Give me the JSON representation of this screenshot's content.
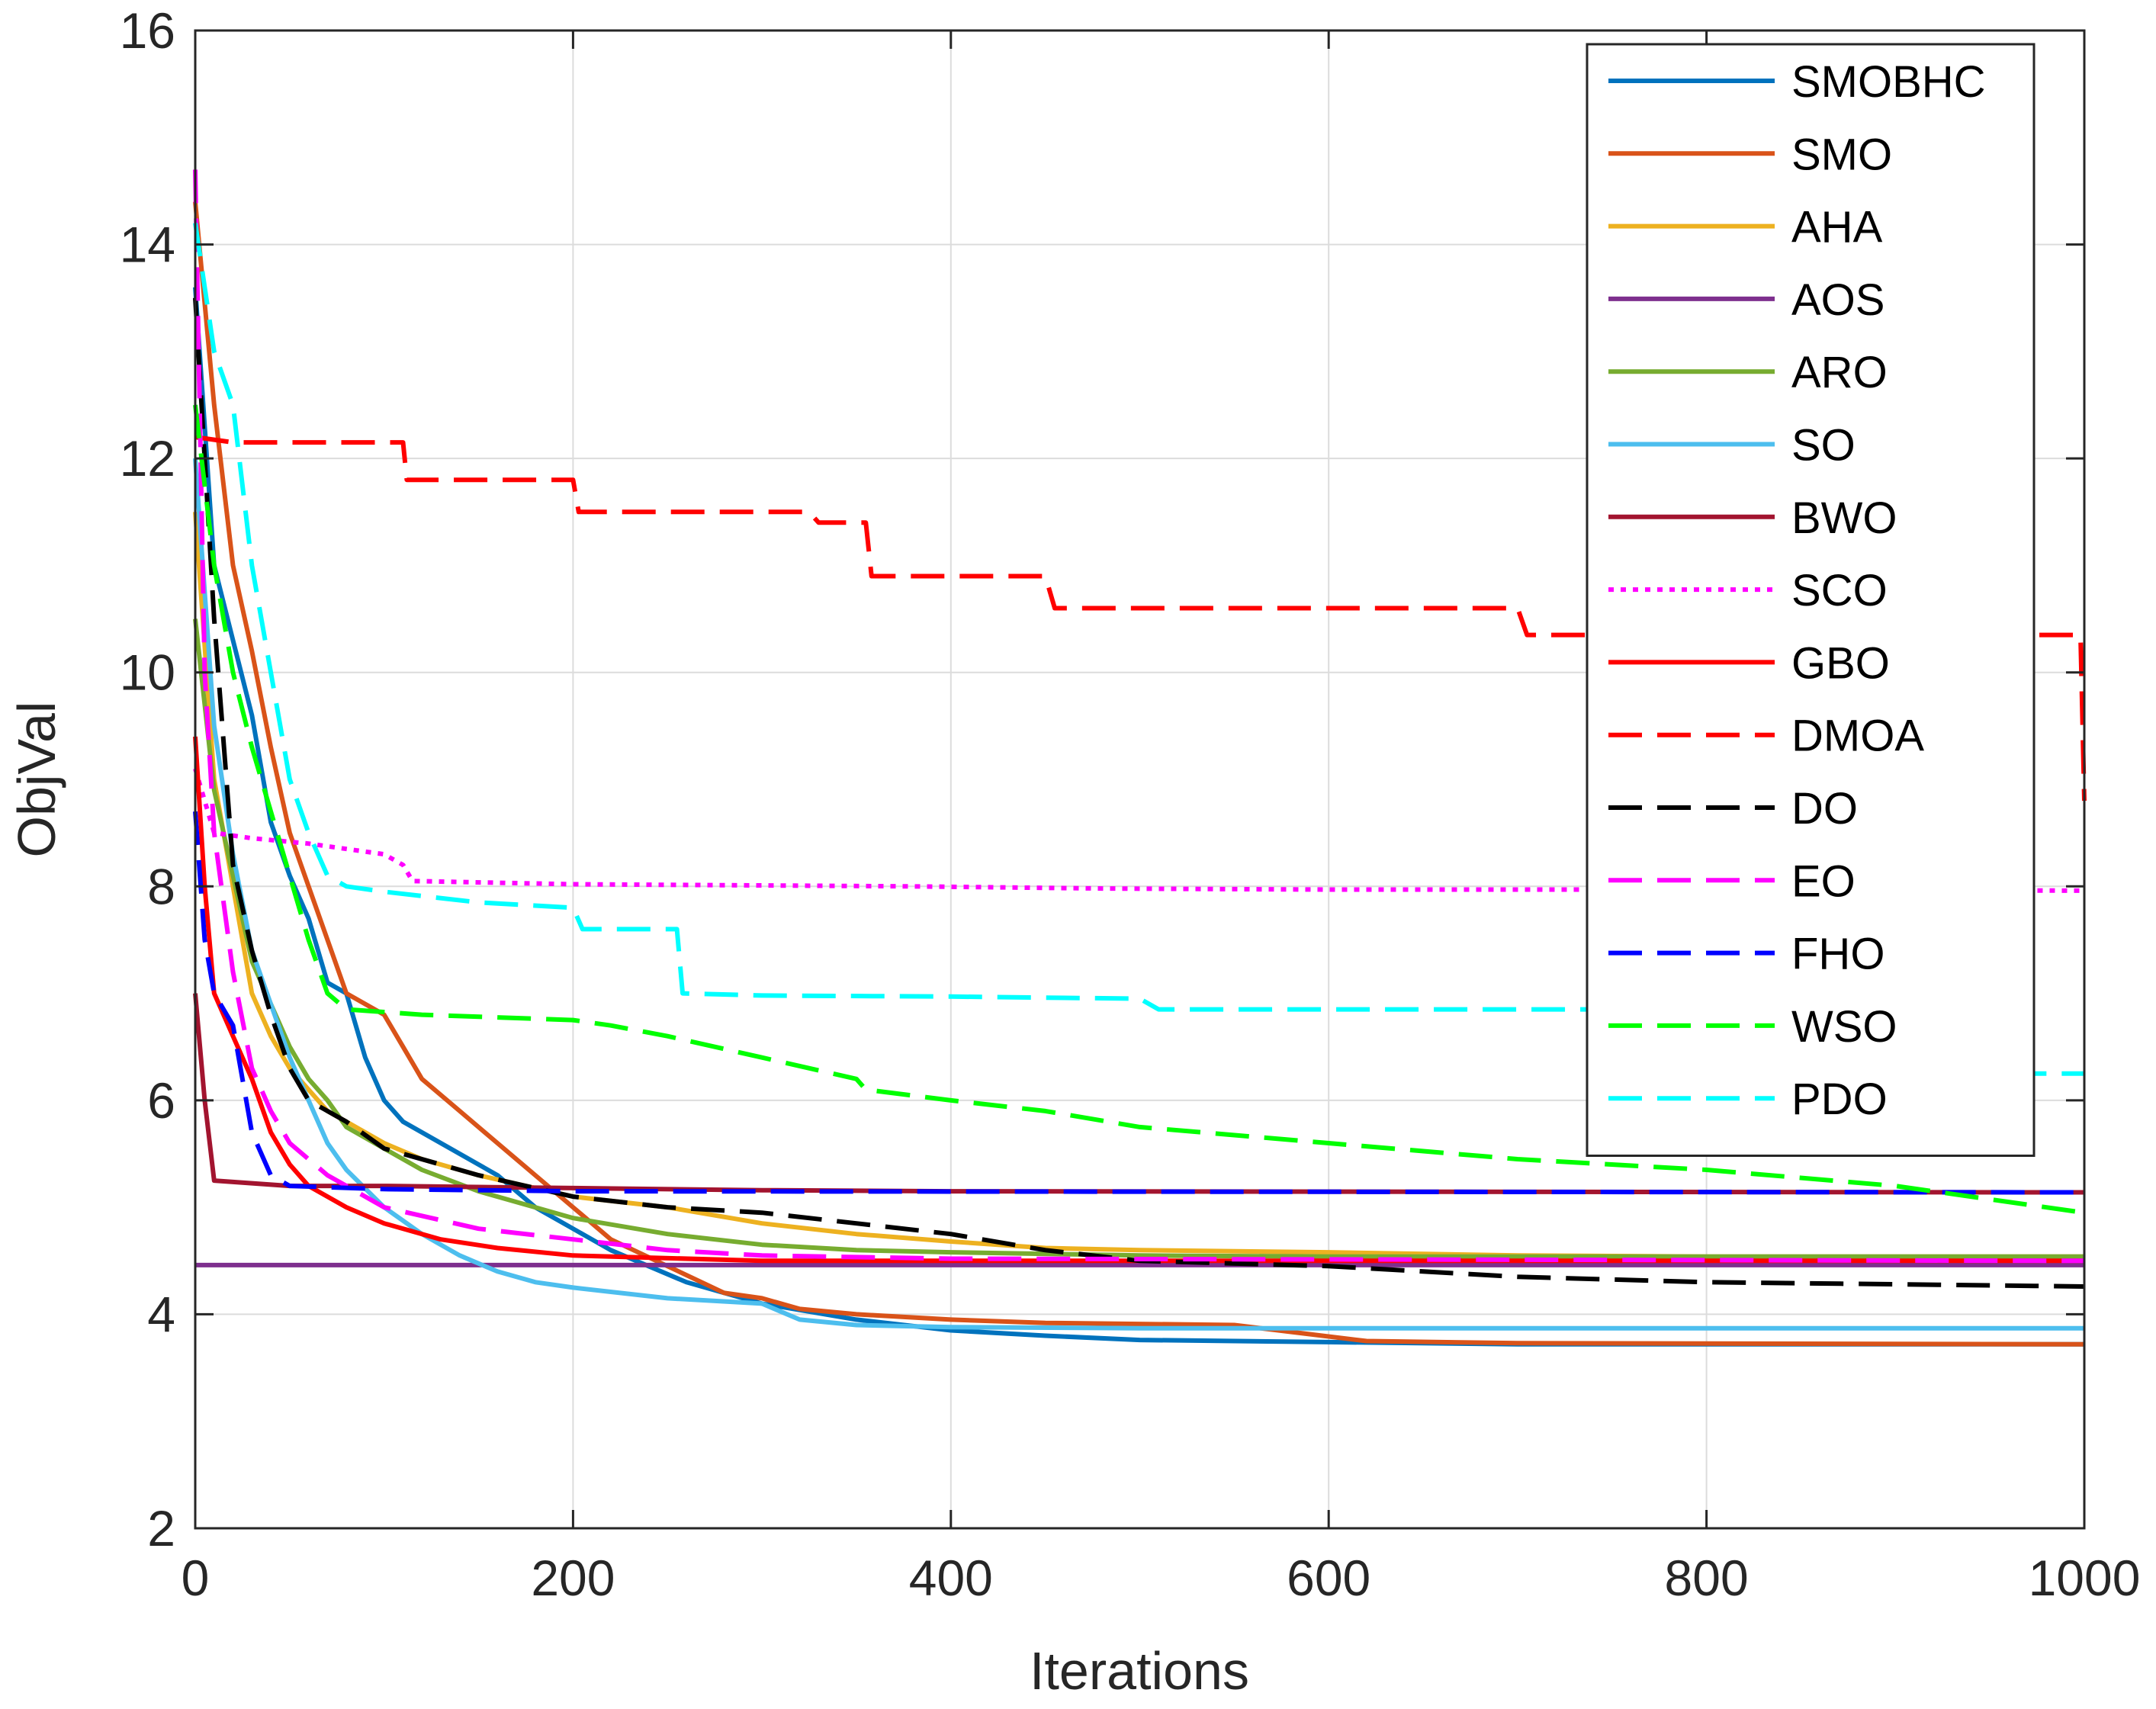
{
  "chart_data": {
    "type": "line",
    "title": "",
    "xlabel": "Iterations",
    "ylabel": "ObjVal",
    "xlim": [
      0,
      1000
    ],
    "ylim": [
      2,
      16
    ],
    "xticks": [
      "0",
      "200",
      "400",
      "600",
      "800",
      "1000"
    ],
    "yticks": [
      "2",
      "4",
      "6",
      "8",
      "10",
      "12",
      "14",
      "16"
    ],
    "grid": true,
    "legend_position": "top-right",
    "series": [
      {
        "name": "SMOBHC",
        "color": "#0072BD",
        "dash": "solid",
        "points": [
          [
            0,
            13.6
          ],
          [
            10,
            11.0
          ],
          [
            20,
            10.3
          ],
          [
            30,
            9.6
          ],
          [
            40,
            8.6
          ],
          [
            50,
            8.1
          ],
          [
            60,
            7.7
          ],
          [
            70,
            7.1
          ],
          [
            80,
            7.0
          ],
          [
            90,
            6.4
          ],
          [
            100,
            6.0
          ],
          [
            110,
            5.8
          ],
          [
            120,
            5.7
          ],
          [
            140,
            5.5
          ],
          [
            160,
            5.3
          ],
          [
            180,
            5.0
          ],
          [
            200,
            4.8
          ],
          [
            220,
            4.6
          ],
          [
            240,
            4.45
          ],
          [
            260,
            4.3
          ],
          [
            280,
            4.2
          ],
          [
            300,
            4.1
          ],
          [
            350,
            3.95
          ],
          [
            400,
            3.85
          ],
          [
            450,
            3.8
          ],
          [
            500,
            3.76
          ],
          [
            600,
            3.74
          ],
          [
            700,
            3.72
          ],
          [
            1000,
            3.72
          ]
        ]
      },
      {
        "name": "SMO",
        "color": "#D95319",
        "dash": "solid",
        "points": [
          [
            0,
            14.4
          ],
          [
            10,
            12.5
          ],
          [
            20,
            11.0
          ],
          [
            30,
            10.2
          ],
          [
            40,
            9.3
          ],
          [
            50,
            8.5
          ],
          [
            60,
            8.0
          ],
          [
            70,
            7.5
          ],
          [
            80,
            7.0
          ],
          [
            100,
            6.8
          ],
          [
            110,
            6.5
          ],
          [
            120,
            6.2
          ],
          [
            140,
            5.9
          ],
          [
            160,
            5.6
          ],
          [
            180,
            5.3
          ],
          [
            200,
            5.0
          ],
          [
            220,
            4.7
          ],
          [
            250,
            4.45
          ],
          [
            280,
            4.2
          ],
          [
            300,
            4.15
          ],
          [
            320,
            4.05
          ],
          [
            350,
            4.0
          ],
          [
            400,
            3.95
          ],
          [
            450,
            3.92
          ],
          [
            550,
            3.9
          ],
          [
            620,
            3.75
          ],
          [
            700,
            3.73
          ],
          [
            1000,
            3.72
          ]
        ]
      },
      {
        "name": "AHA",
        "color": "#EDB120",
        "dash": "solid",
        "points": [
          [
            0,
            11.5
          ],
          [
            10,
            9.0
          ],
          [
            20,
            8.0
          ],
          [
            30,
            7.0
          ],
          [
            40,
            6.6
          ],
          [
            50,
            6.3
          ],
          [
            60,
            6.1
          ],
          [
            70,
            5.9
          ],
          [
            80,
            5.8
          ],
          [
            100,
            5.6
          ],
          [
            120,
            5.45
          ],
          [
            150,
            5.3
          ],
          [
            200,
            5.1
          ],
          [
            250,
            5.0
          ],
          [
            300,
            4.85
          ],
          [
            350,
            4.75
          ],
          [
            400,
            4.68
          ],
          [
            450,
            4.62
          ],
          [
            500,
            4.6
          ],
          [
            600,
            4.58
          ],
          [
            700,
            4.55
          ],
          [
            800,
            4.54
          ],
          [
            1000,
            4.54
          ]
        ]
      },
      {
        "name": "AOS",
        "color": "#7E2F8E",
        "dash": "solid",
        "points": [
          [
            0,
            4.46
          ],
          [
            1000,
            4.46
          ]
        ]
      },
      {
        "name": "ARO",
        "color": "#77AC30",
        "dash": "solid",
        "points": [
          [
            0,
            10.5
          ],
          [
            10,
            8.9
          ],
          [
            20,
            8.1
          ],
          [
            30,
            7.3
          ],
          [
            40,
            6.9
          ],
          [
            50,
            6.5
          ],
          [
            60,
            6.2
          ],
          [
            70,
            6.0
          ],
          [
            80,
            5.75
          ],
          [
            100,
            5.55
          ],
          [
            120,
            5.35
          ],
          [
            150,
            5.15
          ],
          [
            200,
            4.9
          ],
          [
            250,
            4.75
          ],
          [
            300,
            4.65
          ],
          [
            350,
            4.6
          ],
          [
            400,
            4.58
          ],
          [
            500,
            4.55
          ],
          [
            600,
            4.54
          ],
          [
            1000,
            4.54
          ]
        ]
      },
      {
        "name": "SO",
        "color": "#4DBEEE",
        "dash": "solid",
        "points": [
          [
            0,
            12.0
          ],
          [
            10,
            9.5
          ],
          [
            20,
            8.3
          ],
          [
            30,
            7.4
          ],
          [
            40,
            6.9
          ],
          [
            50,
            6.4
          ],
          [
            60,
            6.0
          ],
          [
            70,
            5.6
          ],
          [
            80,
            5.35
          ],
          [
            100,
            5.0
          ],
          [
            120,
            4.75
          ],
          [
            140,
            4.55
          ],
          [
            160,
            4.4
          ],
          [
            180,
            4.3
          ],
          [
            200,
            4.25
          ],
          [
            250,
            4.15
          ],
          [
            300,
            4.1
          ],
          [
            320,
            3.95
          ],
          [
            350,
            3.9
          ],
          [
            400,
            3.88
          ],
          [
            500,
            3.87
          ],
          [
            1000,
            3.87
          ]
        ]
      },
      {
        "name": "BWO",
        "color": "#A2142F",
        "dash": "solid",
        "points": [
          [
            0,
            7.0
          ],
          [
            5,
            6.0
          ],
          [
            10,
            5.25
          ],
          [
            50,
            5.2
          ],
          [
            100,
            5.2
          ],
          [
            200,
            5.18
          ],
          [
            300,
            5.16
          ],
          [
            400,
            5.15
          ],
          [
            1000,
            5.14
          ]
        ]
      },
      {
        "name": "SCO",
        "color": "#FF00FF",
        "dash": "dotted",
        "points": [
          [
            0,
            9.1
          ],
          [
            5,
            8.8
          ],
          [
            10,
            8.5
          ],
          [
            30,
            8.45
          ],
          [
            60,
            8.4
          ],
          [
            80,
            8.35
          ],
          [
            100,
            8.3
          ],
          [
            110,
            8.2
          ],
          [
            115,
            8.05
          ],
          [
            200,
            8.02
          ],
          [
            380,
            8.0
          ],
          [
            480,
            7.98
          ],
          [
            600,
            7.97
          ],
          [
            800,
            7.97
          ],
          [
            1000,
            7.96
          ]
        ]
      },
      {
        "name": "GBO",
        "color": "#FF0000",
        "dash": "solid",
        "points": [
          [
            0,
            9.4
          ],
          [
            5,
            8.0
          ],
          [
            10,
            7.0
          ],
          [
            20,
            6.6
          ],
          [
            30,
            6.2
          ],
          [
            40,
            5.7
          ],
          [
            50,
            5.4
          ],
          [
            60,
            5.2
          ],
          [
            80,
            5.0
          ],
          [
            100,
            4.85
          ],
          [
            130,
            4.7
          ],
          [
            160,
            4.62
          ],
          [
            200,
            4.55
          ],
          [
            300,
            4.5
          ],
          [
            1000,
            4.5
          ]
        ]
      },
      {
        "name": "DMOA",
        "color": "#FF0000",
        "dash": "dashed",
        "points": [
          [
            0,
            12.2
          ],
          [
            20,
            12.15
          ],
          [
            110,
            12.15
          ],
          [
            112,
            11.8
          ],
          [
            200,
            11.8
          ],
          [
            203,
            11.5
          ],
          [
            325,
            11.5
          ],
          [
            330,
            11.4
          ],
          [
            355,
            11.4
          ],
          [
            358,
            10.9
          ],
          [
            450,
            10.9
          ],
          [
            455,
            10.6
          ],
          [
            700,
            10.6
          ],
          [
            705,
            10.35
          ],
          [
            800,
            10.35
          ],
          [
            998,
            10.35
          ],
          [
            1000,
            8.8
          ]
        ]
      },
      {
        "name": "DO",
        "color": "#000000",
        "dash": "dashed",
        "points": [
          [
            0,
            13.5
          ],
          [
            10,
            10.5
          ],
          [
            20,
            8.2
          ],
          [
            30,
            7.4
          ],
          [
            40,
            6.8
          ],
          [
            50,
            6.3
          ],
          [
            60,
            6.0
          ],
          [
            80,
            5.8
          ],
          [
            100,
            5.55
          ],
          [
            150,
            5.3
          ],
          [
            200,
            5.1
          ],
          [
            250,
            5.0
          ],
          [
            300,
            4.95
          ],
          [
            350,
            4.85
          ],
          [
            400,
            4.75
          ],
          [
            450,
            4.6
          ],
          [
            500,
            4.5
          ],
          [
            600,
            4.45
          ],
          [
            700,
            4.35
          ],
          [
            800,
            4.3
          ],
          [
            900,
            4.28
          ],
          [
            1000,
            4.26
          ]
        ]
      },
      {
        "name": "EO",
        "color": "#FF00FF",
        "dash": "dashed",
        "points": [
          [
            0,
            14.7
          ],
          [
            5,
            10.0
          ],
          [
            10,
            8.5
          ],
          [
            20,
            7.2
          ],
          [
            30,
            6.3
          ],
          [
            40,
            5.9
          ],
          [
            50,
            5.6
          ],
          [
            70,
            5.3
          ],
          [
            100,
            5.0
          ],
          [
            150,
            4.8
          ],
          [
            200,
            4.7
          ],
          [
            250,
            4.6
          ],
          [
            300,
            4.55
          ],
          [
            400,
            4.52
          ],
          [
            1000,
            4.5
          ]
        ]
      },
      {
        "name": "FHO",
        "color": "#0000FF",
        "dash": "dashed",
        "points": [
          [
            0,
            8.7
          ],
          [
            5,
            7.5
          ],
          [
            10,
            7.0
          ],
          [
            20,
            6.7
          ],
          [
            30,
            5.7
          ],
          [
            40,
            5.3
          ],
          [
            50,
            5.2
          ],
          [
            100,
            5.17
          ],
          [
            200,
            5.15
          ],
          [
            1000,
            5.14
          ]
        ]
      },
      {
        "name": "WSO",
        "color": "#00FF00",
        "dash": "dashed",
        "points": [
          [
            0,
            12.5
          ],
          [
            10,
            11.0
          ],
          [
            20,
            10.0
          ],
          [
            30,
            9.3
          ],
          [
            40,
            8.7
          ],
          [
            50,
            8.1
          ],
          [
            60,
            7.5
          ],
          [
            70,
            7.0
          ],
          [
            80,
            6.85
          ],
          [
            120,
            6.8
          ],
          [
            200,
            6.75
          ],
          [
            220,
            6.7
          ],
          [
            250,
            6.6
          ],
          [
            300,
            6.4
          ],
          [
            350,
            6.2
          ],
          [
            355,
            6.1
          ],
          [
            400,
            6.0
          ],
          [
            450,
            5.9
          ],
          [
            500,
            5.75
          ],
          [
            600,
            5.6
          ],
          [
            700,
            5.45
          ],
          [
            800,
            5.35
          ],
          [
            900,
            5.2
          ],
          [
            1000,
            4.95
          ]
        ]
      },
      {
        "name": "PDO",
        "color": "#00FFFF",
        "dash": "dashed",
        "points": [
          [
            0,
            14.2
          ],
          [
            10,
            13.0
          ],
          [
            20,
            12.5
          ],
          [
            30,
            11.0
          ],
          [
            40,
            10.0
          ],
          [
            50,
            9.0
          ],
          [
            60,
            8.5
          ],
          [
            70,
            8.1
          ],
          [
            80,
            8.0
          ],
          [
            100,
            7.95
          ],
          [
            150,
            7.85
          ],
          [
            200,
            7.8
          ],
          [
            205,
            7.6
          ],
          [
            255,
            7.6
          ],
          [
            258,
            7.0
          ],
          [
            300,
            6.98
          ],
          [
            400,
            6.97
          ],
          [
            500,
            6.95
          ],
          [
            510,
            6.85
          ],
          [
            700,
            6.85
          ],
          [
            960,
            6.85
          ],
          [
            965,
            6.25
          ],
          [
            1000,
            6.25
          ]
        ]
      }
    ]
  }
}
